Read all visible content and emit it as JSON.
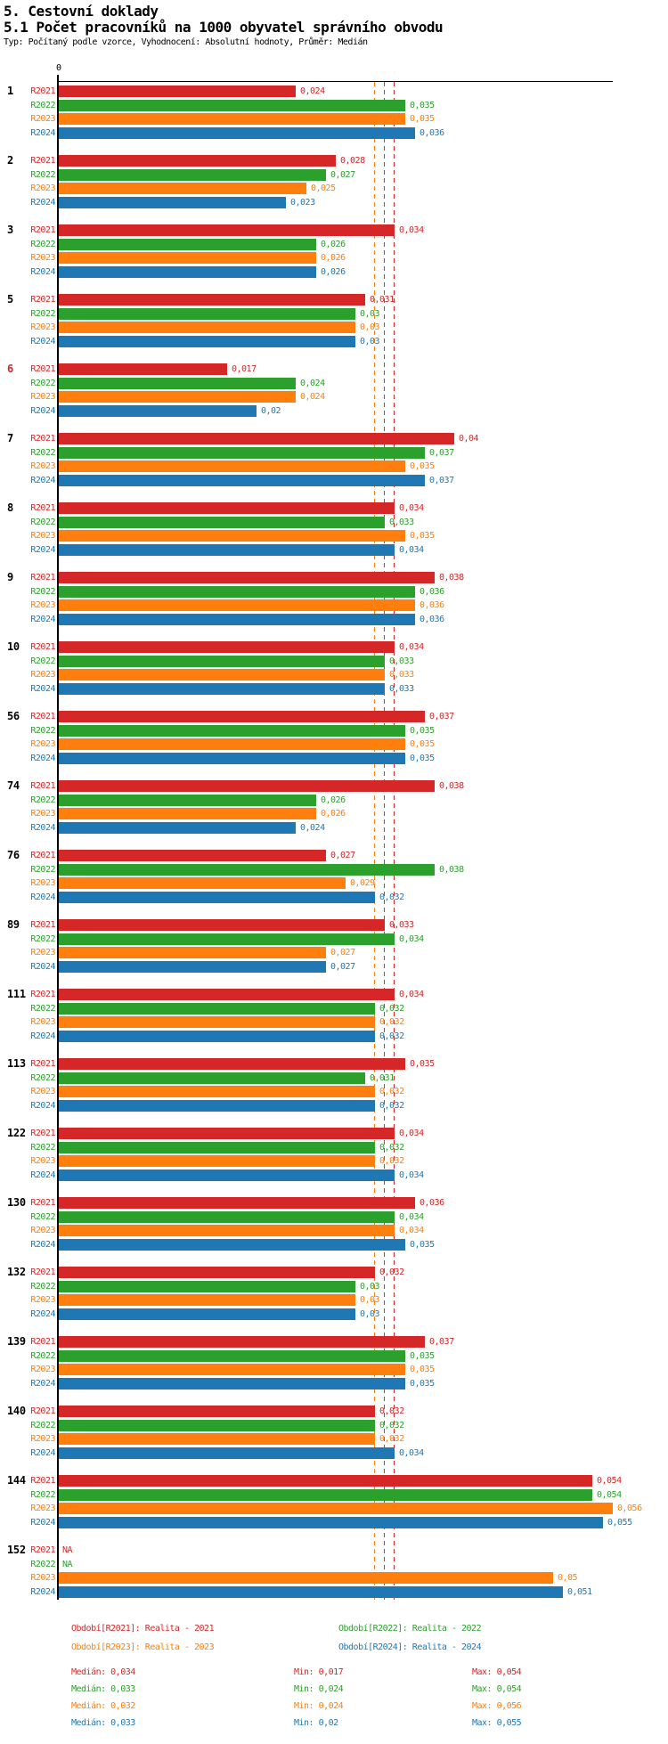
{
  "header": {
    "title_line1": "5. Cestovní doklady",
    "title_line2": "5.1 Počet pracovníků na 1000 obyvatel správního obvodu",
    "meta_line": "Typ: Počítaný podle vzorce, Vyhodnocení: Absolutní hodnoty, Průměr: Medián"
  },
  "chart_data": {
    "type": "bar",
    "orientation": "horizontal",
    "value_axis": {
      "origin_label": "0",
      "max_shown": 0.056
    },
    "series": [
      {
        "name": "R2021",
        "color": "#d62728"
      },
      {
        "name": "R2022",
        "color": "#2ca02c"
      },
      {
        "name": "R2023",
        "color": "#ff7f0e"
      },
      {
        "name": "R2024",
        "color": "#1f77b4"
      }
    ],
    "groups": [
      {
        "id": "1",
        "values": [
          0.024,
          0.035,
          0.035,
          0.036
        ],
        "labels": [
          "0,024",
          "0,035",
          "0,035",
          "0,036"
        ]
      },
      {
        "id": "2",
        "values": [
          0.028,
          0.027,
          0.025,
          0.023
        ],
        "labels": [
          "0,028",
          "0,027",
          "0,025",
          "0,023"
        ]
      },
      {
        "id": "3",
        "values": [
          0.034,
          0.026,
          0.026,
          0.026
        ],
        "labels": [
          "0,034",
          "0,026",
          "0,026",
          "0,026"
        ]
      },
      {
        "id": "5",
        "values": [
          0.031,
          0.03,
          0.03,
          0.03
        ],
        "labels": [
          "0,031",
          "0,03",
          "0,03",
          "0,03"
        ]
      },
      {
        "id": "6",
        "highlight": true,
        "values": [
          0.017,
          0.024,
          0.024,
          0.02
        ],
        "labels": [
          "0,017",
          "0,024",
          "0,024",
          "0,02"
        ]
      },
      {
        "id": "7",
        "values": [
          0.04,
          0.037,
          0.035,
          0.037
        ],
        "labels": [
          "0,04",
          "0,037",
          "0,035",
          "0,037"
        ]
      },
      {
        "id": "8",
        "values": [
          0.034,
          0.033,
          0.035,
          0.034
        ],
        "labels": [
          "0,034",
          "0,033",
          "0,035",
          "0,034"
        ]
      },
      {
        "id": "9",
        "values": [
          0.038,
          0.036,
          0.036,
          0.036
        ],
        "labels": [
          "0,038",
          "0,036",
          "0,036",
          "0,036"
        ]
      },
      {
        "id": "10",
        "values": [
          0.034,
          0.033,
          0.033,
          0.033
        ],
        "labels": [
          "0,034",
          "0,033",
          "0,033",
          "0,033"
        ]
      },
      {
        "id": "56",
        "values": [
          0.037,
          0.035,
          0.035,
          0.035
        ],
        "labels": [
          "0,037",
          "0,035",
          "0,035",
          "0,035"
        ]
      },
      {
        "id": "74",
        "values": [
          0.038,
          0.026,
          0.026,
          0.024
        ],
        "labels": [
          "0,038",
          "0,026",
          "0,026",
          "0,024"
        ]
      },
      {
        "id": "76",
        "values": [
          0.027,
          0.038,
          0.029,
          0.032
        ],
        "labels": [
          "0,027",
          "0,038",
          "0,029",
          "0,032"
        ]
      },
      {
        "id": "89",
        "values": [
          0.033,
          0.034,
          0.027,
          0.027
        ],
        "labels": [
          "0,033",
          "0,034",
          "0,027",
          "0,027"
        ]
      },
      {
        "id": "111",
        "values": [
          0.034,
          0.032,
          0.032,
          0.032
        ],
        "labels": [
          "0,034",
          "0,032",
          "0,032",
          "0,032"
        ]
      },
      {
        "id": "113",
        "values": [
          0.035,
          0.031,
          0.032,
          0.032
        ],
        "labels": [
          "0,035",
          "0,031",
          "0,032",
          "0,032"
        ]
      },
      {
        "id": "122",
        "values": [
          0.034,
          0.032,
          0.032,
          0.034
        ],
        "labels": [
          "0,034",
          "0,032",
          "0,032",
          "0,034"
        ]
      },
      {
        "id": "130",
        "values": [
          0.036,
          0.034,
          0.034,
          0.035
        ],
        "labels": [
          "0,036",
          "0,034",
          "0,034",
          "0,035"
        ]
      },
      {
        "id": "132",
        "values": [
          0.032,
          0.03,
          0.03,
          0.03
        ],
        "labels": [
          "0,032",
          "0,03",
          "0,03",
          "0,03"
        ]
      },
      {
        "id": "139",
        "values": [
          0.037,
          0.035,
          0.035,
          0.035
        ],
        "labels": [
          "0,037",
          "0,035",
          "0,035",
          "0,035"
        ]
      },
      {
        "id": "140",
        "values": [
          0.032,
          0.032,
          0.032,
          0.034
        ],
        "labels": [
          "0,032",
          "0,032",
          "0,032",
          "0,034"
        ]
      },
      {
        "id": "144",
        "values": [
          0.054,
          0.054,
          0.056,
          0.055
        ],
        "labels": [
          "0,054",
          "0,054",
          "0,056",
          "0,055"
        ]
      },
      {
        "id": "152",
        "values": [
          null,
          null,
          0.05,
          0.051
        ],
        "labels": [
          "NA",
          "NA",
          "0,05",
          "0,051"
        ]
      }
    ],
    "reference_lines": [
      {
        "series": "R2023",
        "color": "#ff7f0e",
        "value": 0.032
      },
      {
        "series": "R2022",
        "color": "#2ca02c",
        "value": 0.033
      },
      {
        "series": "R2024",
        "color": "#1f77b4",
        "value": 0.033
      },
      {
        "series": "R2021",
        "color": "#d62728",
        "value": 0.034
      }
    ],
    "legend": [
      {
        "series": "R2021",
        "text": "Období[R2021]: Realita - 2021",
        "color": "#d62728",
        "row": 0,
        "col": 0
      },
      {
        "series": "R2022",
        "text": "Období[R2022]: Realita - 2022",
        "color": "#2ca02c",
        "row": 0,
        "col": 1
      },
      {
        "series": "R2023",
        "text": "Období[R2023]: Realita - 2023",
        "color": "#ff7f0e",
        "row": 1,
        "col": 0
      },
      {
        "series": "R2024",
        "text": "Období[R2024]: Realita - 2024",
        "color": "#1f77b4",
        "row": 1,
        "col": 1
      }
    ],
    "stats": [
      {
        "series": "R2021",
        "color": "#d62728",
        "median": "Medián: 0,034",
        "min": "Min: 0,017",
        "max": "Max: 0,054"
      },
      {
        "series": "R2022",
        "color": "#2ca02c",
        "median": "Medián: 0,033",
        "min": "Min: 0,024",
        "max": "Max: 0,054"
      },
      {
        "series": "R2023",
        "color": "#ff7f0e",
        "median": "Medián: 0,032",
        "min": "Min: 0,024",
        "max": "Max: 0,056"
      },
      {
        "series": "R2024",
        "color": "#1f77b4",
        "median": "Medián: 0,033",
        "min": "Min: 0,02",
        "max": "Max: 0,055"
      }
    ]
  }
}
